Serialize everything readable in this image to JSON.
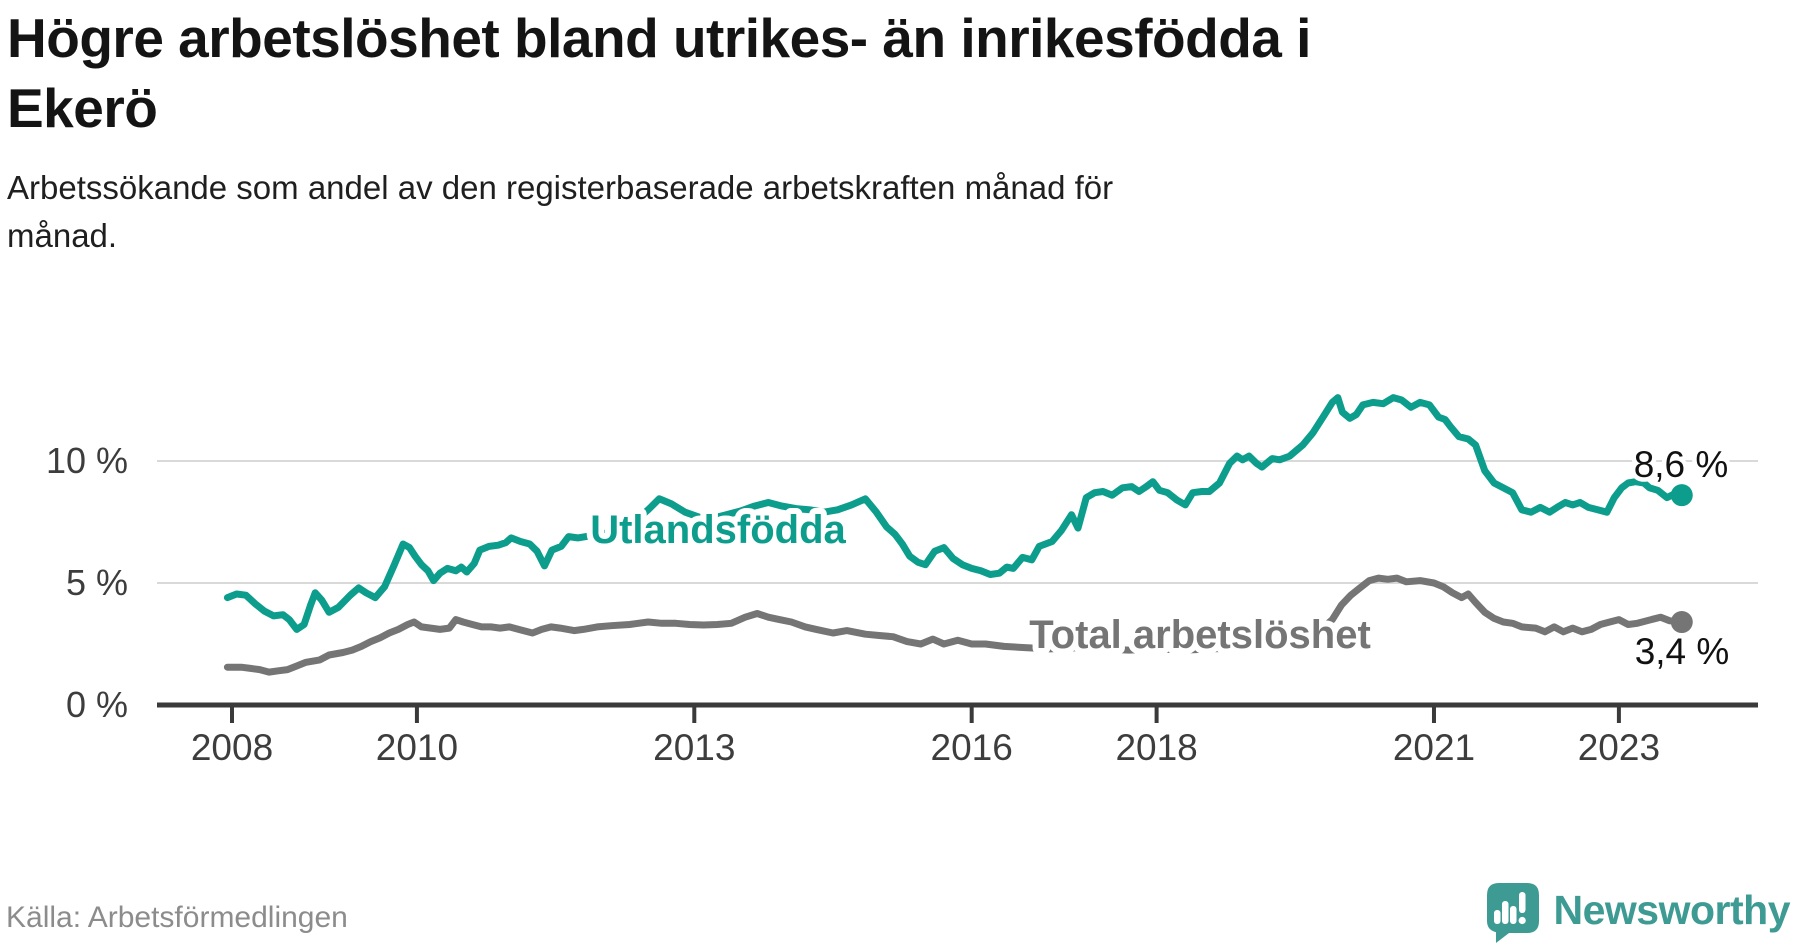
{
  "title_lines": [
    "Högre arbetslöshet bland utrikes- än inrikesfödda i",
    "Ekerö"
  ],
  "subtitle_lines": [
    "Arbetssökande som andel av den registerbaserade arbetskraften månad för",
    "månad."
  ],
  "source_text": "Källa: Arbetsförmedlingen",
  "logo": {
    "wordmark": "Newsworthy",
    "icon": "speech-bubble-bar-chart-icon",
    "color": "#3e9b94"
  },
  "chart_data": {
    "type": "line",
    "x_unit": "year (decimal, monthly data)",
    "y_unit": "percent of labour force",
    "grid": "horizontal gridlines at 5 % and 10 %",
    "xlim": [
      2007.2,
      2024.5
    ],
    "ylim": [
      0,
      15
    ],
    "x_ticks": [
      {
        "t": 2008,
        "label": "2008"
      },
      {
        "t": 2010,
        "label": "2010"
      },
      {
        "t": 2013,
        "label": "2013"
      },
      {
        "t": 2016,
        "label": "2016"
      },
      {
        "t": 2018,
        "label": "2018"
      },
      {
        "t": 2021,
        "label": "2021"
      },
      {
        "t": 2023,
        "label": "2023"
      }
    ],
    "y_ticks": [
      {
        "v": 0,
        "label": "0 %"
      },
      {
        "v": 5,
        "label": "5 %"
      },
      {
        "v": 10,
        "label": "10 %"
      }
    ],
    "series": [
      {
        "name": "Utlandsfödda",
        "color": "#0d9d8d",
        "end_value": 8.6,
        "end_label": "8,6 %",
        "points": [
          [
            2007.95,
            4.4
          ],
          [
            2008.05,
            4.55
          ],
          [
            2008.15,
            4.5
          ],
          [
            2008.25,
            4.15
          ],
          [
            2008.35,
            3.85
          ],
          [
            2008.45,
            3.65
          ],
          [
            2008.55,
            3.7
          ],
          [
            2008.62,
            3.5
          ],
          [
            2008.7,
            3.1
          ],
          [
            2008.78,
            3.3
          ],
          [
            2008.85,
            4.1
          ],
          [
            2008.9,
            4.6
          ],
          [
            2008.97,
            4.3
          ],
          [
            2009.05,
            3.8
          ],
          [
            2009.15,
            4.0
          ],
          [
            2009.28,
            4.5
          ],
          [
            2009.37,
            4.8
          ],
          [
            2009.45,
            4.6
          ],
          [
            2009.55,
            4.4
          ],
          [
            2009.65,
            4.85
          ],
          [
            2009.75,
            5.7
          ],
          [
            2009.85,
            6.6
          ],
          [
            2009.92,
            6.45
          ],
          [
            2009.98,
            6.1
          ],
          [
            2010.05,
            5.75
          ],
          [
            2010.12,
            5.5
          ],
          [
            2010.18,
            5.1
          ],
          [
            2010.25,
            5.4
          ],
          [
            2010.33,
            5.6
          ],
          [
            2010.42,
            5.5
          ],
          [
            2010.48,
            5.65
          ],
          [
            2010.54,
            5.45
          ],
          [
            2010.62,
            5.8
          ],
          [
            2010.68,
            6.35
          ],
          [
            2010.78,
            6.5
          ],
          [
            2010.88,
            6.55
          ],
          [
            2010.96,
            6.65
          ],
          [
            2011.02,
            6.85
          ],
          [
            2011.12,
            6.7
          ],
          [
            2011.22,
            6.6
          ],
          [
            2011.3,
            6.3
          ],
          [
            2011.38,
            5.7
          ],
          [
            2011.46,
            6.35
          ],
          [
            2011.56,
            6.5
          ],
          [
            2011.64,
            6.9
          ],
          [
            2011.74,
            6.85
          ],
          [
            2011.9,
            6.95
          ],
          [
            2012.05,
            7.05
          ],
          [
            2012.2,
            7.2
          ],
          [
            2012.35,
            7.5
          ],
          [
            2012.5,
            8.0
          ],
          [
            2012.62,
            8.45
          ],
          [
            2012.75,
            8.25
          ],
          [
            2012.9,
            7.9
          ],
          [
            2013.05,
            7.7
          ],
          [
            2013.2,
            7.65
          ],
          [
            2013.35,
            7.8
          ],
          [
            2013.5,
            7.95
          ],
          [
            2013.65,
            8.15
          ],
          [
            2013.8,
            8.3
          ],
          [
            2013.95,
            8.15
          ],
          [
            2014.1,
            8.05
          ],
          [
            2014.25,
            8.0
          ],
          [
            2014.4,
            7.9
          ],
          [
            2014.55,
            8.0
          ],
          [
            2014.7,
            8.2
          ],
          [
            2014.85,
            8.45
          ],
          [
            2014.97,
            7.9
          ],
          [
            2015.08,
            7.3
          ],
          [
            2015.17,
            7.0
          ],
          [
            2015.25,
            6.6
          ],
          [
            2015.33,
            6.1
          ],
          [
            2015.42,
            5.85
          ],
          [
            2015.5,
            5.75
          ],
          [
            2015.6,
            6.3
          ],
          [
            2015.7,
            6.45
          ],
          [
            2015.8,
            6.0
          ],
          [
            2015.9,
            5.75
          ],
          [
            2016.0,
            5.6
          ],
          [
            2016.1,
            5.5
          ],
          [
            2016.2,
            5.35
          ],
          [
            2016.3,
            5.4
          ],
          [
            2016.38,
            5.65
          ],
          [
            2016.45,
            5.6
          ],
          [
            2016.55,
            6.05
          ],
          [
            2016.65,
            5.95
          ],
          [
            2016.73,
            6.5
          ],
          [
            2016.87,
            6.7
          ],
          [
            2016.97,
            7.15
          ],
          [
            2017.08,
            7.8
          ],
          [
            2017.15,
            7.25
          ],
          [
            2017.24,
            8.5
          ],
          [
            2017.33,
            8.7
          ],
          [
            2017.42,
            8.75
          ],
          [
            2017.52,
            8.6
          ],
          [
            2017.63,
            8.9
          ],
          [
            2017.73,
            8.95
          ],
          [
            2017.81,
            8.75
          ],
          [
            2017.89,
            8.95
          ],
          [
            2017.96,
            9.15
          ],
          [
            2018.03,
            8.8
          ],
          [
            2018.12,
            8.7
          ],
          [
            2018.22,
            8.4
          ],
          [
            2018.31,
            8.2
          ],
          [
            2018.39,
            8.7
          ],
          [
            2018.49,
            8.75
          ],
          [
            2018.57,
            8.75
          ],
          [
            2018.68,
            9.1
          ],
          [
            2018.79,
            9.9
          ],
          [
            2018.87,
            10.2
          ],
          [
            2018.93,
            10.05
          ],
          [
            2019.0,
            10.2
          ],
          [
            2019.08,
            9.9
          ],
          [
            2019.14,
            9.75
          ],
          [
            2019.25,
            10.1
          ],
          [
            2019.33,
            10.05
          ],
          [
            2019.44,
            10.2
          ],
          [
            2019.58,
            10.65
          ],
          [
            2019.69,
            11.15
          ],
          [
            2019.8,
            11.8
          ],
          [
            2019.9,
            12.4
          ],
          [
            2019.96,
            12.6
          ],
          [
            2020.01,
            12.0
          ],
          [
            2020.09,
            11.75
          ],
          [
            2020.16,
            11.9
          ],
          [
            2020.23,
            12.3
          ],
          [
            2020.34,
            12.4
          ],
          [
            2020.45,
            12.35
          ],
          [
            2020.56,
            12.6
          ],
          [
            2020.65,
            12.5
          ],
          [
            2020.75,
            12.2
          ],
          [
            2020.85,
            12.4
          ],
          [
            2020.95,
            12.3
          ],
          [
            2021.05,
            11.8
          ],
          [
            2021.12,
            11.7
          ],
          [
            2021.18,
            11.4
          ],
          [
            2021.27,
            11.0
          ],
          [
            2021.37,
            10.9
          ],
          [
            2021.45,
            10.65
          ],
          [
            2021.55,
            9.6
          ],
          [
            2021.65,
            9.1
          ],
          [
            2021.75,
            8.9
          ],
          [
            2021.85,
            8.7
          ],
          [
            2021.95,
            8.0
          ],
          [
            2022.05,
            7.9
          ],
          [
            2022.15,
            8.1
          ],
          [
            2022.25,
            7.9
          ],
          [
            2022.33,
            8.1
          ],
          [
            2022.42,
            8.3
          ],
          [
            2022.5,
            8.2
          ],
          [
            2022.58,
            8.3
          ],
          [
            2022.67,
            8.1
          ],
          [
            2022.77,
            8.0
          ],
          [
            2022.87,
            7.9
          ],
          [
            2022.95,
            8.5
          ],
          [
            2023.03,
            8.9
          ],
          [
            2023.1,
            9.1
          ],
          [
            2023.18,
            9.15
          ],
          [
            2023.27,
            9.1
          ],
          [
            2023.33,
            8.9
          ],
          [
            2023.42,
            8.8
          ],
          [
            2023.52,
            8.5
          ],
          [
            2023.6,
            8.65
          ],
          [
            2023.68,
            8.6
          ]
        ]
      },
      {
        "name": "Total arbetslöshet",
        "color": "#757575",
        "end_value": 3.4,
        "end_label": "3,4 %",
        "points": [
          [
            2007.95,
            1.55
          ],
          [
            2008.1,
            1.55
          ],
          [
            2008.2,
            1.5
          ],
          [
            2008.3,
            1.45
          ],
          [
            2008.4,
            1.35
          ],
          [
            2008.5,
            1.4
          ],
          [
            2008.6,
            1.45
          ],
          [
            2008.7,
            1.6
          ],
          [
            2008.8,
            1.75
          ],
          [
            2008.95,
            1.85
          ],
          [
            2009.05,
            2.05
          ],
          [
            2009.2,
            2.15
          ],
          [
            2009.3,
            2.25
          ],
          [
            2009.4,
            2.4
          ],
          [
            2009.5,
            2.6
          ],
          [
            2009.6,
            2.75
          ],
          [
            2009.7,
            2.95
          ],
          [
            2009.8,
            3.1
          ],
          [
            2009.9,
            3.3
          ],
          [
            2009.97,
            3.4
          ],
          [
            2010.05,
            3.2
          ],
          [
            2010.15,
            3.15
          ],
          [
            2010.25,
            3.1
          ],
          [
            2010.35,
            3.15
          ],
          [
            2010.42,
            3.5
          ],
          [
            2010.5,
            3.4
          ],
          [
            2010.6,
            3.3
          ],
          [
            2010.7,
            3.2
          ],
          [
            2010.8,
            3.2
          ],
          [
            2010.9,
            3.15
          ],
          [
            2011.0,
            3.2
          ],
          [
            2011.1,
            3.1
          ],
          [
            2011.25,
            2.95
          ],
          [
            2011.35,
            3.1
          ],
          [
            2011.45,
            3.2
          ],
          [
            2011.55,
            3.15
          ],
          [
            2011.7,
            3.05
          ],
          [
            2011.8,
            3.1
          ],
          [
            2011.95,
            3.2
          ],
          [
            2012.1,
            3.25
          ],
          [
            2012.3,
            3.3
          ],
          [
            2012.5,
            3.4
          ],
          [
            2012.65,
            3.35
          ],
          [
            2012.8,
            3.35
          ],
          [
            2012.95,
            3.3
          ],
          [
            2013.1,
            3.28
          ],
          [
            2013.25,
            3.3
          ],
          [
            2013.4,
            3.35
          ],
          [
            2013.55,
            3.6
          ],
          [
            2013.68,
            3.75
          ],
          [
            2013.8,
            3.6
          ],
          [
            2013.92,
            3.5
          ],
          [
            2014.05,
            3.4
          ],
          [
            2014.2,
            3.2
          ],
          [
            2014.32,
            3.1
          ],
          [
            2014.5,
            2.95
          ],
          [
            2014.65,
            3.05
          ],
          [
            2014.85,
            2.9
          ],
          [
            2015.0,
            2.85
          ],
          [
            2015.15,
            2.8
          ],
          [
            2015.3,
            2.6
          ],
          [
            2015.45,
            2.5
          ],
          [
            2015.58,
            2.7
          ],
          [
            2015.7,
            2.5
          ],
          [
            2015.85,
            2.65
          ],
          [
            2016.0,
            2.5
          ],
          [
            2016.15,
            2.5
          ],
          [
            2016.35,
            2.4
          ],
          [
            2016.6,
            2.35
          ],
          [
            2016.85,
            2.3
          ],
          [
            2017.1,
            2.35
          ],
          [
            2017.4,
            2.3
          ],
          [
            2017.7,
            2.25
          ],
          [
            2018.0,
            2.3
          ],
          [
            2018.3,
            2.25
          ],
          [
            2018.6,
            2.3
          ],
          [
            2018.9,
            2.35
          ],
          [
            2019.2,
            2.5
          ],
          [
            2019.5,
            2.7
          ],
          [
            2019.75,
            3.0
          ],
          [
            2019.9,
            3.5
          ],
          [
            2020.0,
            4.1
          ],
          [
            2020.1,
            4.5
          ],
          [
            2020.2,
            4.8
          ],
          [
            2020.3,
            5.1
          ],
          [
            2020.4,
            5.2
          ],
          [
            2020.5,
            5.15
          ],
          [
            2020.6,
            5.2
          ],
          [
            2020.7,
            5.05
          ],
          [
            2020.85,
            5.1
          ],
          [
            2021.0,
            5.0
          ],
          [
            2021.1,
            4.85
          ],
          [
            2021.2,
            4.6
          ],
          [
            2021.3,
            4.4
          ],
          [
            2021.37,
            4.55
          ],
          [
            2021.45,
            4.2
          ],
          [
            2021.55,
            3.8
          ],
          [
            2021.65,
            3.55
          ],
          [
            2021.75,
            3.4
          ],
          [
            2021.85,
            3.35
          ],
          [
            2021.95,
            3.2
          ],
          [
            2022.1,
            3.15
          ],
          [
            2022.2,
            3.0
          ],
          [
            2022.3,
            3.2
          ],
          [
            2022.4,
            3.0
          ],
          [
            2022.5,
            3.15
          ],
          [
            2022.6,
            3.0
          ],
          [
            2022.7,
            3.1
          ],
          [
            2022.8,
            3.3
          ],
          [
            2022.9,
            3.4
          ],
          [
            2023.0,
            3.5
          ],
          [
            2023.1,
            3.3
          ],
          [
            2023.2,
            3.35
          ],
          [
            2023.35,
            3.5
          ],
          [
            2023.45,
            3.6
          ],
          [
            2023.55,
            3.45
          ],
          [
            2023.68,
            3.4
          ]
        ]
      }
    ]
  }
}
